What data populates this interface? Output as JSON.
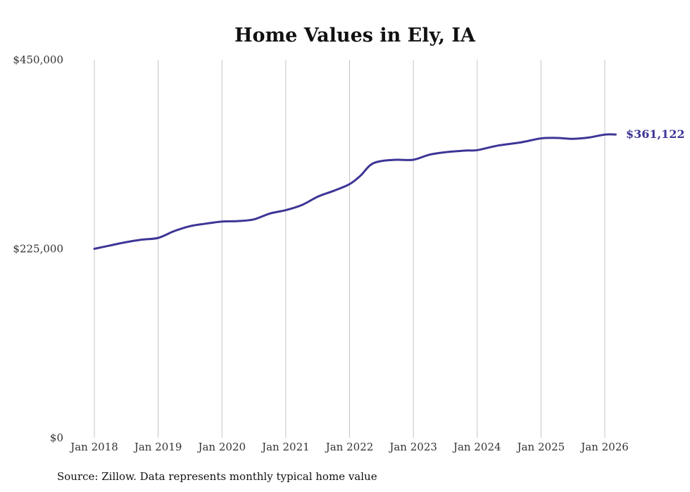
{
  "chart_data": {
    "type": "line",
    "title": "Home Values in Ely, IA",
    "xlabel": "",
    "ylabel": "",
    "ylim": [
      0,
      450000
    ],
    "yticks": [
      {
        "value": 0,
        "label": "$0"
      },
      {
        "value": 225000,
        "label": "$225,000"
      },
      {
        "value": 450000,
        "label": "$450,000"
      }
    ],
    "xticks": [
      {
        "value": 2018,
        "label": "Jan 2018"
      },
      {
        "value": 2019,
        "label": "Jan 2019"
      },
      {
        "value": 2020,
        "label": "Jan 2020"
      },
      {
        "value": 2021,
        "label": "Jan 2021"
      },
      {
        "value": 2022,
        "label": "Jan 2022"
      },
      {
        "value": 2023,
        "label": "Jan 2023"
      },
      {
        "value": 2024,
        "label": "Jan 2024"
      },
      {
        "value": 2025,
        "label": "Jan 2025"
      },
      {
        "value": 2026,
        "label": "Jan 2026"
      }
    ],
    "xlim": [
      2018,
      2026.17
    ],
    "grid": {
      "vertical": true,
      "horizontal": false
    },
    "series": [
      {
        "name": "Typical home value",
        "color": "#3d3596",
        "x": [
          2018.0,
          2018.25,
          2018.5,
          2018.75,
          2019.0,
          2019.25,
          2019.5,
          2019.75,
          2020.0,
          2020.25,
          2020.5,
          2020.75,
          2021.0,
          2021.25,
          2021.5,
          2021.75,
          2022.0,
          2022.17,
          2022.33,
          2022.5,
          2022.75,
          2023.0,
          2023.25,
          2023.5,
          2023.83,
          2024.0,
          2024.33,
          2024.67,
          2025.0,
          2025.25,
          2025.5,
          2025.75,
          2026.0,
          2026.17
        ],
        "values": [
          225000,
          229000,
          233000,
          236000,
          238000,
          246000,
          252000,
          255000,
          257500,
          258000,
          260000,
          267000,
          271000,
          277000,
          287000,
          294000,
          302000,
          312000,
          325000,
          329500,
          331000,
          331000,
          337000,
          340000,
          342000,
          342500,
          348000,
          351500,
          356500,
          357000,
          356000,
          357500,
          361000,
          361122
        ]
      }
    ],
    "end_label": "$361,122",
    "source_text": "Source: Zillow. Data represents monthly typical home value"
  }
}
